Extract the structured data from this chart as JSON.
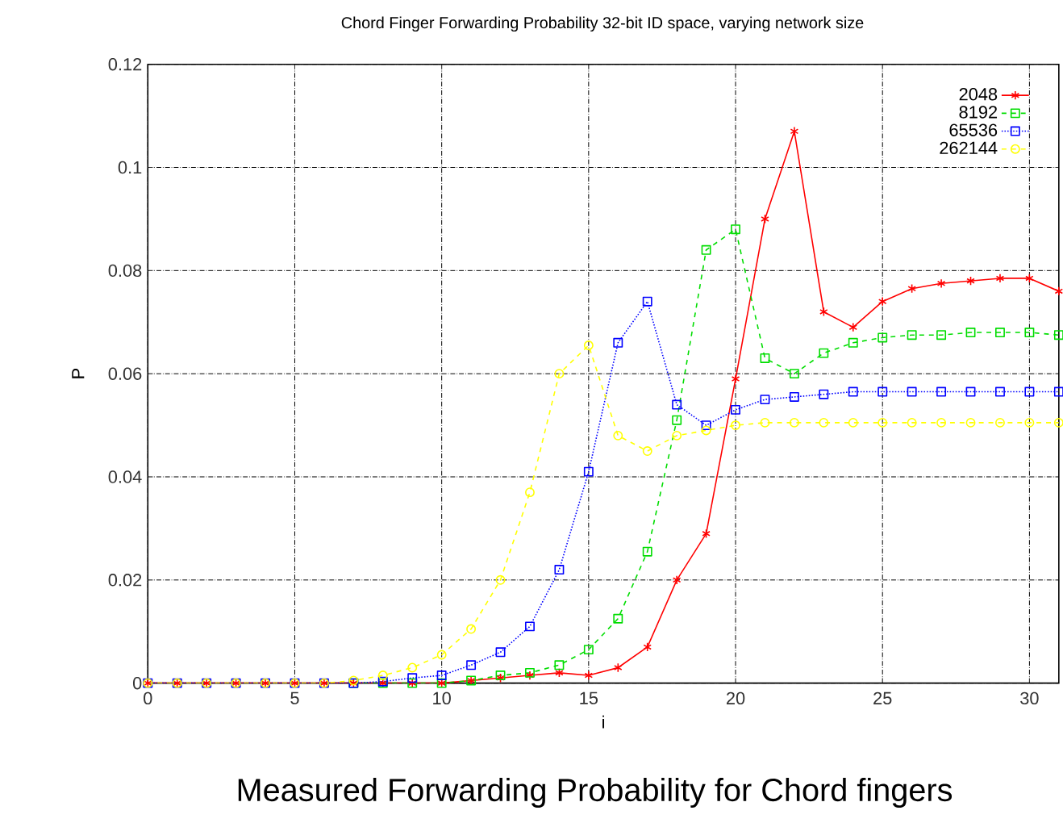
{
  "chart_data": {
    "type": "line",
    "title": "Chord Finger Forwarding Probability 32-bit ID space, varying network size",
    "xlabel": "i",
    "ylabel": "P",
    "x": [
      0,
      1,
      2,
      3,
      4,
      5,
      6,
      7,
      8,
      9,
      10,
      11,
      12,
      13,
      14,
      15,
      16,
      17,
      18,
      19,
      20,
      21,
      22,
      23,
      24,
      25,
      26,
      27,
      28,
      29,
      30,
      31
    ],
    "series": [
      {
        "name": "2048",
        "color": "#ff0000",
        "marker": "cross",
        "line_style": "solid",
        "values": [
          0,
          0,
          0,
          0,
          0,
          0,
          0,
          0,
          0,
          0,
          0,
          0.0005,
          0.001,
          0.0015,
          0.002,
          0.0015,
          0.003,
          0.007,
          0.02,
          0.029,
          0.059,
          0.09,
          0.107,
          0.072,
          0.069,
          0.074,
          0.0765,
          0.0775,
          0.078,
          0.0785,
          0.0785,
          0.076
        ]
      },
      {
        "name": "8192",
        "color": "#00dd00",
        "marker": "square",
        "line_style": "dashed",
        "values": [
          null,
          null,
          null,
          null,
          null,
          null,
          null,
          0,
          0,
          0,
          0,
          0.0005,
          0.0015,
          0.002,
          0.0035,
          0.0065,
          0.0125,
          0.0255,
          0.051,
          0.084,
          0.088,
          0.063,
          0.06,
          0.064,
          0.066,
          0.067,
          0.0675,
          0.0675,
          0.068,
          0.068,
          0.068,
          0.0675
        ]
      },
      {
        "name": "65536",
        "color": "#0000ff",
        "marker": "square",
        "line_style": "dotted",
        "values": [
          0,
          0,
          0,
          0,
          0,
          0,
          0,
          0,
          0.0003,
          0.001,
          0.0015,
          0.0035,
          0.006,
          0.011,
          0.022,
          0.041,
          0.066,
          0.074,
          0.054,
          0.05,
          0.053,
          0.055,
          0.0555,
          0.056,
          0.0565,
          0.0565,
          0.0565,
          0.0565,
          0.0565,
          0.0565,
          0.0565,
          0.0565
        ]
      },
      {
        "name": "262144",
        "color": "#ffff00",
        "marker": "circle",
        "line_style": "dashed",
        "values": [
          0,
          0,
          0,
          0,
          0,
          0,
          0,
          0.0005,
          0.0015,
          0.003,
          0.0055,
          0.0105,
          0.02,
          0.037,
          0.06,
          0.0655,
          0.048,
          0.045,
          0.048,
          0.049,
          0.05,
          0.0505,
          0.0505,
          0.0505,
          0.0505,
          0.0505,
          0.0505,
          0.0505,
          0.0505,
          0.0505,
          0.0505,
          0.0505
        ]
      }
    ],
    "xlim": [
      0,
      31
    ],
    "xticks": [
      0,
      5,
      10,
      15,
      20,
      25,
      30
    ],
    "ylim": [
      0,
      0.12
    ],
    "yticks": [
      0,
      0.02,
      0.04,
      0.06,
      0.08,
      0.1,
      0.12
    ],
    "grid": true,
    "legend": "top right",
    "annotations": [
      "Measured Forwarding Probability for Chord fingers"
    ]
  }
}
